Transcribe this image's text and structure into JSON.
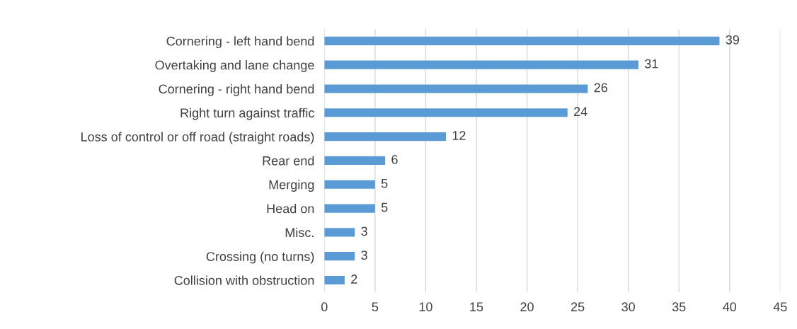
{
  "chart_data": {
    "type": "bar",
    "orientation": "horizontal",
    "categories": [
      "Cornering - left hand bend",
      "Overtaking and lane change",
      "Cornering - right hand bend",
      "Right turn against traffic",
      "Loss of control or off road (straight roads)",
      "Rear end",
      "Merging",
      "Head on",
      "Misc.",
      "Crossing (no turns)",
      "Collision with obstruction"
    ],
    "values": [
      39,
      31,
      26,
      24,
      12,
      6,
      5,
      5,
      3,
      3,
      2
    ],
    "color": "#5b9bd5",
    "xlim": [
      0,
      45
    ],
    "xticks": [
      0,
      5,
      10,
      15,
      20,
      25,
      30,
      35,
      40,
      45
    ],
    "grid": "x",
    "data_labels": true,
    "legend": false
  }
}
